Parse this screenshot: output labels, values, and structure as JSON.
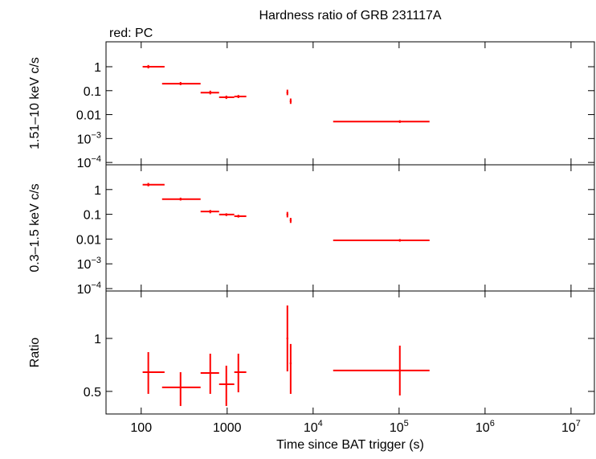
{
  "chart_data": [
    {
      "type": "errorbar",
      "title": "Hardness ratio of GRB 231117A",
      "subtitle": "red: PC",
      "ylabel": "1.51–10 keV c/s",
      "log_x": true,
      "log_y": true,
      "color": "#ff0000",
      "xlim": [
        39,
        18700000
      ],
      "ylim": [
        8e-05,
        11
      ],
      "yticks": [
        1,
        0.1,
        0.01,
        {
          "value": 0.001,
          "label": "10",
          "exponent": "−3"
        },
        {
          "value": 0.0001,
          "label": "10",
          "exponent": "−4"
        }
      ],
      "x": [
        121,
        287,
        636,
        978,
        1350,
        5020,
        5480,
        102000
      ],
      "xmin": [
        104,
        175,
        491,
        806,
        1210,
        4900,
        5350,
        17100
      ],
      "xmax": [
        187,
        491,
        806,
        1210,
        1670,
        5150,
        5620,
        226000
      ],
      "y": [
        1.0,
        0.196,
        0.083,
        0.053,
        0.057,
        0.083,
        0.036,
        0.0051
      ],
      "ymin": [
        0.85,
        0.17,
        0.07,
        0.045,
        0.049,
        0.065,
        0.028,
        0.0045
      ],
      "ymax": [
        1.18,
        0.23,
        0.1,
        0.062,
        0.066,
        0.11,
        0.047,
        0.0058
      ]
    },
    {
      "type": "errorbar",
      "ylabel": "0.3–1.5 keV c/s",
      "log_x": true,
      "log_y": true,
      "color": "#ff0000",
      "xlim": [
        39,
        18700000
      ],
      "ylim": [
        8e-05,
        10
      ],
      "yticks": [
        1,
        0.1,
        0.01,
        {
          "value": 0.001,
          "label": "10",
          "exponent": "−3"
        },
        {
          "value": 0.0001,
          "label": "10",
          "exponent": "−4"
        }
      ],
      "x": [
        121,
        287,
        636,
        978,
        1350,
        5020,
        5480,
        102000
      ],
      "xmin": [
        104,
        175,
        491,
        806,
        1210,
        4900,
        5350,
        17100
      ],
      "xmax": [
        187,
        491,
        806,
        1210,
        1670,
        5150,
        5620,
        226000
      ],
      "y": [
        1.57,
        0.41,
        0.13,
        0.098,
        0.084,
        0.098,
        0.058,
        0.0089
      ],
      "ymin": [
        1.35,
        0.36,
        0.11,
        0.085,
        0.074,
        0.075,
        0.045,
        0.0079
      ],
      "ymax": [
        1.85,
        0.47,
        0.15,
        0.11,
        0.096,
        0.125,
        0.072,
        0.01
      ]
    },
    {
      "type": "errorbar",
      "ylabel": "Ratio",
      "xlabel": "Time since BAT trigger (s)",
      "log_x": true,
      "log_y": true,
      "color": "#ff0000",
      "xlim": [
        39,
        18700000
      ],
      "ylim": [
        0.372,
        1.86
      ],
      "yticks": [
        1,
        0.5
      ],
      "xticks": [
        100,
        1000,
        {
          "value": 10000,
          "label": "10",
          "exponent": "4"
        },
        {
          "value": 100000,
          "label": "10",
          "exponent": "5"
        },
        {
          "value": 1000000,
          "label": "10",
          "exponent": "6"
        },
        {
          "value": 10000000,
          "label": "10",
          "exponent": "7"
        }
      ],
      "x": [
        121,
        287,
        636,
        978,
        1350,
        5020,
        5480,
        102000
      ],
      "xmin": [
        104,
        175,
        491,
        806,
        1210,
        4900,
        5350,
        17100
      ],
      "xmax": [
        187,
        491,
        806,
        1210,
        1670,
        5150,
        5620,
        226000
      ],
      "y": [
        0.643,
        0.527,
        0.636,
        0.549,
        0.643,
        1.0,
        0.722,
        0.657
      ],
      "ymin": [
        0.484,
        0.413,
        0.484,
        0.413,
        0.494,
        0.65,
        0.484,
        0.474
      ],
      "ymax": [
        0.836,
        0.643,
        0.819,
        0.7,
        0.819,
        1.54,
        0.93,
        0.91
      ]
    }
  ]
}
